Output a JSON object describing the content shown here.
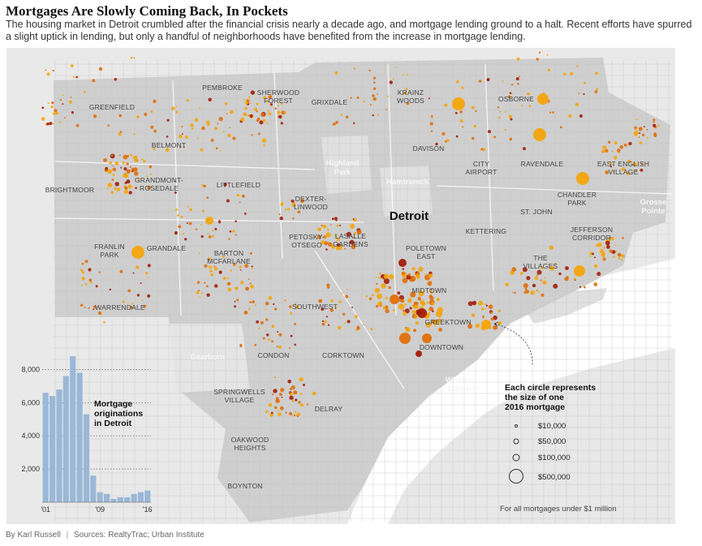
{
  "header": {
    "title": "Mortgages Are Slowly Coming Back, In Pockets",
    "subtitle": "The housing market in Detroit crumbled after the financial crisis nearly a decade ago, and mortgage lending ground to a halt. Recent efforts have spurred a slight uptick in lending, but only a handful of neighborhoods have benefited from the increase in mortgage lending."
  },
  "map": {
    "city_label": "Detroit",
    "neighborhoods": [
      {
        "name": "GREENFIELD"
      },
      {
        "name": "PEMBROKE"
      },
      {
        "name": "SHERWOOD",
        "line2": "FOREST"
      },
      {
        "name": "GRIXDALE"
      },
      {
        "name": "KRAINZ",
        "line2": "WOODS"
      },
      {
        "name": "OSBORNE"
      },
      {
        "name": "BELMONT"
      },
      {
        "name": "DAVISON"
      },
      {
        "name": "CITY",
        "line2": "AIRPORT"
      },
      {
        "name": "RAVENDALE"
      },
      {
        "name": "EAST ENGLISH",
        "line2": "VILLAGE"
      },
      {
        "name": "GRANDMONT-",
        "line2": "ROSEDALE"
      },
      {
        "name": "BRIGHTMOOR"
      },
      {
        "name": "LITTLEFIELD"
      },
      {
        "name": "DEXTER-",
        "line2": "LINWOOD"
      },
      {
        "name": "CHANDLER",
        "line2": "PARK"
      },
      {
        "name": "ST. JOHN"
      },
      {
        "name": "PETOSKY-",
        "line2": "OTSEGO"
      },
      {
        "name": "LASALLE",
        "line2": "GARDENS"
      },
      {
        "name": "KETTERING"
      },
      {
        "name": "JEFFERSON",
        "line2": "CORRIDOR"
      },
      {
        "name": "FRANLIN",
        "line2": "PARK"
      },
      {
        "name": "GRANDALE"
      },
      {
        "name": "BARTON",
        "line2": "MCFARLANE"
      },
      {
        "name": "POLETOWN",
        "line2": "EAST"
      },
      {
        "name": "THE",
        "line2": "VILLAGES"
      },
      {
        "name": "MIDTOWN"
      },
      {
        "name": "WARRENDALE"
      },
      {
        "name": "SOUTHWEST"
      },
      {
        "name": "GREEKTOWN"
      },
      {
        "name": "DOWNTOWN"
      },
      {
        "name": "CONDON"
      },
      {
        "name": "CORKTOWN"
      },
      {
        "name": "SPRINGWELLS",
        "line2": "VILLAGE"
      },
      {
        "name": "DELRAY"
      },
      {
        "name": "OAKWOOD",
        "line2": "HEIGHTS"
      },
      {
        "name": "BOYNTON"
      }
    ],
    "other_places": [
      {
        "name": "Highland",
        "line2": "Park"
      },
      {
        "name": "Hamtramck"
      },
      {
        "name": "Grosse",
        "line2": "Pointe"
      },
      {
        "name": "Dearborn"
      },
      {
        "name": "Windsor,",
        "line2": "Canada"
      }
    ],
    "legend": {
      "title_lines": [
        "Each circle represents",
        "the size of one",
        "2016 mortgage"
      ],
      "items": [
        {
          "label": "$10,000",
          "amount": 10000
        },
        {
          "label": "$50,000",
          "amount": 50000
        },
        {
          "label": "$100,000",
          "amount": 100000
        },
        {
          "label": "$500,000",
          "amount": 500000
        }
      ],
      "note": "For all mortgages under $1 million"
    },
    "colors": {
      "water": "#ffffff",
      "land_outside": "#e8e8e8",
      "land_city": "#cfcfcf",
      "dot_light": "#f5a300",
      "dot_mid": "#e06a00",
      "dot_dark": "#a01400"
    }
  },
  "chart_data": {
    "type": "bar",
    "title": "Mortgage originations in Detroit",
    "title_lines": [
      "Mortgage",
      "originations",
      "in Detroit"
    ],
    "x": [
      2001,
      2002,
      2003,
      2004,
      2005,
      2006,
      2007,
      2008,
      2009,
      2010,
      2011,
      2012,
      2013,
      2014,
      2015,
      2016
    ],
    "values": [
      6600,
      6400,
      6800,
      7600,
      8800,
      7800,
      5300,
      1600,
      600,
      500,
      200,
      300,
      300,
      500,
      600,
      700
    ],
    "ylim": [
      0,
      9000
    ],
    "y_ticks": [
      2000,
      4000,
      6000,
      8000
    ],
    "y_tick_labels": [
      "2,000",
      "4,000",
      "6,000",
      "8,000"
    ],
    "x_tick_labels": [
      "'01",
      "'09",
      "'16"
    ],
    "bar_color": "#9bb8d8"
  },
  "byline": {
    "author": "By Karl Russell",
    "separator": "|",
    "sources": "Sources: RealtyTrac; Urban Institute"
  }
}
